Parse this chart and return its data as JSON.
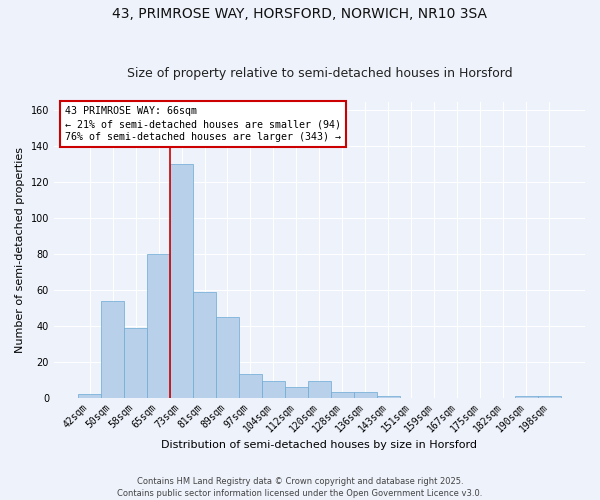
{
  "title_line1": "43, PRIMROSE WAY, HORSFORD, NORWICH, NR10 3SA",
  "title_line2": "Size of property relative to semi-detached houses in Horsford",
  "categories": [
    "42sqm",
    "50sqm",
    "58sqm",
    "65sqm",
    "73sqm",
    "81sqm",
    "89sqm",
    "97sqm",
    "104sqm",
    "112sqm",
    "120sqm",
    "128sqm",
    "136sqm",
    "143sqm",
    "151sqm",
    "159sqm",
    "167sqm",
    "175sqm",
    "182sqm",
    "190sqm",
    "198sqm"
  ],
  "values": [
    2,
    54,
    39,
    80,
    130,
    59,
    45,
    13,
    9,
    6,
    9,
    3,
    3,
    1,
    0,
    0,
    0,
    0,
    0,
    1,
    1
  ],
  "bar_color": "#b8d0ea",
  "bar_edge_color": "#6aaad4",
  "xlabel": "Distribution of semi-detached houses by size in Horsford",
  "ylabel": "Number of semi-detached properties",
  "ylim": [
    0,
    165
  ],
  "yticks": [
    0,
    20,
    40,
    60,
    80,
    100,
    120,
    140,
    160
  ],
  "annotation_title": "43 PRIMROSE WAY: 66sqm",
  "annotation_line2": "← 21% of semi-detached houses are smaller (94)",
  "annotation_line3": "76% of semi-detached houses are larger (343) →",
  "footer_line1": "Contains HM Land Registry data © Crown copyright and database right 2025.",
  "footer_line2": "Contains public sector information licensed under the Open Government Licence v3.0.",
  "background_color": "#eef2fb",
  "grid_color": "#ffffff",
  "annotation_box_color": "#ffffff",
  "annotation_box_edge": "#cc0000",
  "red_line_color": "#cc0000",
  "title_fontsize": 10,
  "subtitle_fontsize": 9,
  "tick_fontsize": 7,
  "ylabel_fontsize": 8,
  "xlabel_fontsize": 8,
  "footer_fontsize": 6
}
